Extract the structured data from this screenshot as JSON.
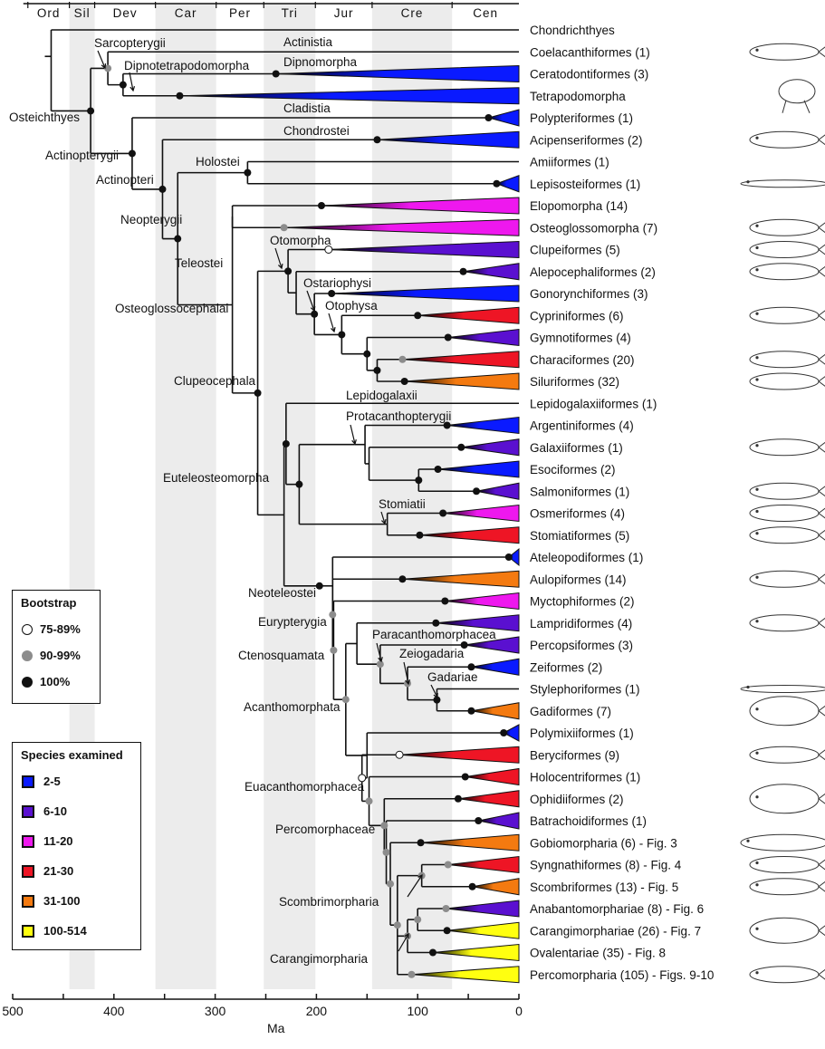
{
  "periods": [
    {
      "label": "Ord",
      "start": 485,
      "end": 444,
      "shaded": false
    },
    {
      "label": "Sil",
      "start": 444,
      "end": 419,
      "shaded": true
    },
    {
      "label": "Dev",
      "start": 419,
      "end": 359,
      "shaded": false
    },
    {
      "label": "Car",
      "start": 359,
      "end": 299,
      "shaded": true
    },
    {
      "label": "Per",
      "start": 299,
      "end": 252,
      "shaded": false
    },
    {
      "label": "Tri",
      "start": 252,
      "end": 201,
      "shaded": true
    },
    {
      "label": "Jur",
      "start": 201,
      "end": 145,
      "shaded": false
    },
    {
      "label": "Cre",
      "start": 145,
      "end": 66,
      "shaded": true
    },
    {
      "label": "Cen",
      "start": 66,
      "end": 0,
      "shaded": false
    }
  ],
  "axis": {
    "label": "Ma",
    "min": 0,
    "max": 500,
    "major_ticks": [
      500,
      400,
      300,
      200,
      100,
      0
    ],
    "minor_ticks": [
      450,
      350,
      250,
      150,
      50
    ]
  },
  "bootstrap_legend": {
    "title": "Bootstrap",
    "items": [
      {
        "label": "75-89%",
        "fill": "#ffffff"
      },
      {
        "label": "90-99%",
        "fill": "#8c8c8c"
      },
      {
        "label": "100%",
        "fill": "#111111"
      }
    ]
  },
  "species_legend": {
    "title": "Species examined",
    "items": [
      {
        "label": "2-5",
        "color": "#0a1aff"
      },
      {
        "label": "6-10",
        "color": "#5a10d0"
      },
      {
        "label": "11-20",
        "color": "#ee18ee"
      },
      {
        "label": "21-30",
        "color": "#ee1525"
      },
      {
        "label": "31-100",
        "color": "#f47a10"
      },
      {
        "label": "100-514",
        "color": "#ffff10"
      }
    ]
  },
  "tips": [
    {
      "label": "Chondrichthyes",
      "color": null,
      "crown_age": null,
      "support": null
    },
    {
      "label": "Coelacanthiformes (1)",
      "color": null,
      "crown_age": null,
      "support": null
    },
    {
      "label": "Ceratodontiformes (3)",
      "color": "#0a1aff",
      "crown_age": 240,
      "support": "100"
    },
    {
      "label": "Tetrapodomorpha",
      "color": "#0a1aff",
      "crown_age": 335,
      "support": "100"
    },
    {
      "label": "Polypteriformes (1)",
      "color": "#0a1aff",
      "crown_age": 30,
      "support": "100"
    },
    {
      "label": "Acipenseriformes (2)",
      "color": "#0a1aff",
      "crown_age": 140,
      "support": "100"
    },
    {
      "label": "Amiiformes (1)",
      "color": null,
      "crown_age": null,
      "support": null
    },
    {
      "label": "Lepisosteiformes (1)",
      "color": "#0a1aff",
      "crown_age": 22,
      "support": "100"
    },
    {
      "label": "Elopomorpha (14)",
      "color": "#ee18ee",
      "crown_age": 195,
      "support": "100"
    },
    {
      "label": "Osteoglossomorpha (7)",
      "color": "#ee18ee",
      "crown_age": 232,
      "support": "90"
    },
    {
      "label": "Clupeiformes (5)",
      "color": "#5a10d0",
      "crown_age": 188,
      "support": "75"
    },
    {
      "label": "Alepocephaliformes (2)",
      "color": "#5a10d0",
      "crown_age": 55,
      "support": "100"
    },
    {
      "label": "Gonorynchiformes (3)",
      "color": "#0a1aff",
      "crown_age": 185,
      "support": "100"
    },
    {
      "label": "Cypriniformes (6)",
      "color": "#ee1525",
      "crown_age": 100,
      "support": "100"
    },
    {
      "label": "Gymnotiformes (4)",
      "color": "#5a10d0",
      "crown_age": 70,
      "support": "100"
    },
    {
      "label": "Characiformes (20)",
      "color": "#ee1525",
      "crown_age": 115,
      "support": "90"
    },
    {
      "label": "Siluriformes (32)",
      "color": "#f47a10",
      "crown_age": 113,
      "support": "100"
    },
    {
      "label": "Lepidogalaxiiformes (1)",
      "color": null,
      "crown_age": null,
      "support": null
    },
    {
      "label": "Argentiniformes (4)",
      "color": "#0a1aff",
      "crown_age": 71,
      "support": "100"
    },
    {
      "label": "Galaxiiformes (1)",
      "color": "#5a10d0",
      "crown_age": 57,
      "support": "100"
    },
    {
      "label": "Esociformes (2)",
      "color": "#0a1aff",
      "crown_age": 80,
      "support": "100"
    },
    {
      "label": "Salmoniformes (1)",
      "color": "#5a10d0",
      "crown_age": 42,
      "support": "100"
    },
    {
      "label": "Osmeriformes (4)",
      "color": "#ee18ee",
      "crown_age": 75,
      "support": "100"
    },
    {
      "label": "Stomiatiformes (5)",
      "color": "#ee1525",
      "crown_age": 98,
      "support": "100"
    },
    {
      "label": "Ateleopodiformes (1)",
      "color": "#0a1aff",
      "crown_age": 10,
      "support": "100"
    },
    {
      "label": "Aulopiformes (14)",
      "color": "#f47a10",
      "crown_age": 115,
      "support": "100"
    },
    {
      "label": "Myctophiformes (2)",
      "color": "#ee18ee",
      "crown_age": 73,
      "support": "100"
    },
    {
      "label": "Lampridiformes (4)",
      "color": "#5a10d0",
      "crown_age": 82,
      "support": "100"
    },
    {
      "label": "Percopsiformes (3)",
      "color": "#5a10d0",
      "crown_age": 54,
      "support": "100"
    },
    {
      "label": "Zeiformes (2)",
      "color": "#0a1aff",
      "crown_age": 47,
      "support": "100"
    },
    {
      "label": "Stylephoriformes (1)",
      "color": null,
      "crown_age": null,
      "support": null
    },
    {
      "label": "Gadiformes (7)",
      "color": "#f47a10",
      "crown_age": 47,
      "support": "100"
    },
    {
      "label": "Polymixiiformes (1)",
      "color": "#0a1aff",
      "crown_age": 15,
      "support": "100"
    },
    {
      "label": "Beryciformes (9)",
      "color": "#ee1525",
      "crown_age": 118,
      "support": "75"
    },
    {
      "label": "Holocentriformes (1)",
      "color": "#ee1525",
      "crown_age": 53,
      "support": "100"
    },
    {
      "label": "Ophidiiformes (2)",
      "color": "#ee1525",
      "crown_age": 60,
      "support": "100"
    },
    {
      "label": "Batrachoidiformes (1)",
      "color": "#5a10d0",
      "crown_age": 40,
      "support": "100"
    },
    {
      "label": "Gobiomorpharia (6) - Fig. 3",
      "color": "#f47a10",
      "crown_age": 97,
      "support": "100"
    },
    {
      "label": "Syngnathiformes (8) - Fig. 4",
      "color": "#ee1525",
      "crown_age": 70,
      "support": "90"
    },
    {
      "label": "Scombriformes (13) - Fig. 5",
      "color": "#f47a10",
      "crown_age": 46,
      "support": "100"
    },
    {
      "label": "Anabantomorphariae (8) - Fig. 6",
      "color": "#5a10d0",
      "crown_age": 72,
      "support": "90"
    },
    {
      "label": "Carangimorphariae (26) - Fig. 7",
      "color": "#ffff10",
      "crown_age": 71,
      "support": "100"
    },
    {
      "label": "Ovalentariae (35) - Fig. 8",
      "color": "#ffff10",
      "crown_age": 85,
      "support": "100"
    },
    {
      "label": "Percomorpharia (105) - Figs. 9-10",
      "color": "#ffff10",
      "crown_age": 106,
      "support": "90"
    }
  ],
  "clade_labels": {
    "osteichthyes": "Osteichthyes",
    "sarcopterygii": "Sarcopterygii",
    "actinistia": "Actinistia",
    "dipnotetrapodomorpha": "Dipnotetrapodomorpha",
    "dipnomorpha": "Dipnomorpha",
    "actinopterygii": "Actinopterygii",
    "cladistia": "Cladistia",
    "actinopteri": "Actinopteri",
    "chondrostei": "Chondrostei",
    "neopterygii": "Neopterygii",
    "holostei": "Holostei",
    "teleostei": "Teleostei",
    "osteoglossocephalai": "Osteoglossocephalai",
    "clupeocephala": "Clupeocephala",
    "otomorpha": "Otomorpha",
    "ostariophysi": "Ostariophysi",
    "otophysa": "Otophysa",
    "lepidogalaxii": "Lepidogalaxii",
    "euteleosteomorpha": "Euteleosteomorpha",
    "protacanthopterygii": "Protacanthopterygii",
    "stomiatii": "Stomiatii",
    "neoteleostei": "Neoteleostei",
    "eurypterygia": "Eurypterygia",
    "ctenosquamata": "Ctenosquamata",
    "acanthomorphata": "Acanthomorphata",
    "paracanthomorphacea": "Paracanthomorphacea",
    "zeiogadaria": "Zeiogadaria",
    "gadariae": "Gadariae",
    "euacanthomorphacea": "Euacanthomorphacea",
    "percomorphaceae": "Percomorphaceae",
    "scombrimorpharia": "Scombrimorpharia",
    "carangimorpharia": "Carangimorpharia"
  },
  "fish_illustrations": [
    "coelacanth",
    "frog",
    "sturgeon",
    "gar",
    "osteoglossid",
    "herring",
    "alepocephalid",
    "milkfish",
    "carp",
    "characin",
    "catfish",
    "galaxiid",
    "salmonid",
    "smelt",
    "dragonfish",
    "lizardfish",
    "oarfish",
    "dory",
    "cod",
    "squirrelfish",
    "cusk-eel",
    "goby",
    "mackerel",
    "flatfish",
    "grouper"
  ]
}
